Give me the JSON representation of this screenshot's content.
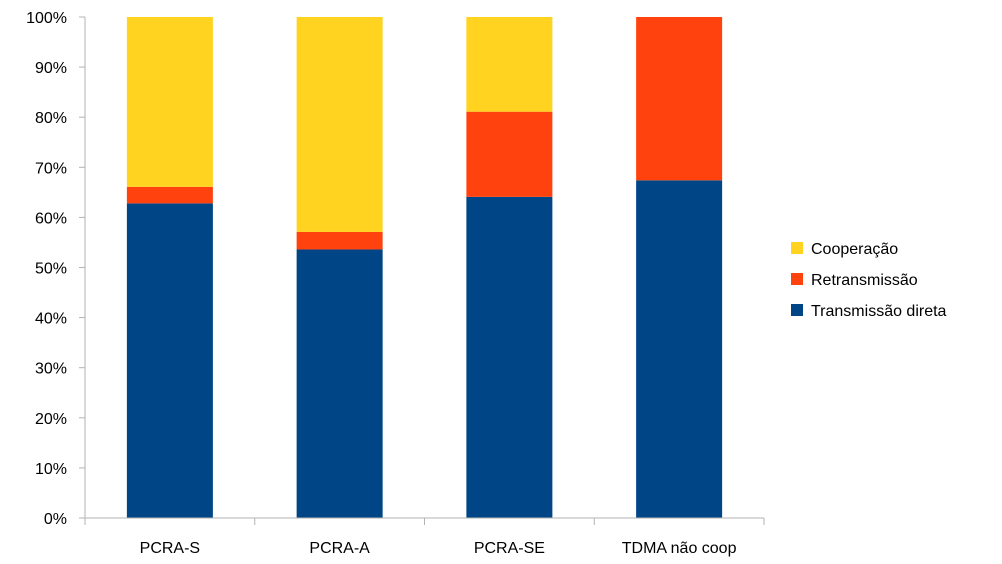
{
  "chart_data": {
    "type": "bar",
    "stacked": true,
    "title": "",
    "xlabel": "",
    "ylabel": "",
    "categories": [
      "PCRA-S",
      "PCRA-A",
      "PCRA-SE",
      "TDMA não coop"
    ],
    "series": [
      {
        "name": "Transmissão direta",
        "color": "#004586",
        "values": [
          62.8,
          53.6,
          64.1,
          67.4
        ]
      },
      {
        "name": "Retransmissão",
        "color": "#ff420e",
        "values": [
          3.3,
          3.5,
          17.0,
          32.6
        ]
      },
      {
        "name": "Cooperação",
        "color": "#ffd320",
        "values": [
          33.9,
          42.9,
          18.9,
          0
        ]
      }
    ],
    "ylim": [
      0,
      100
    ],
    "yticks": [
      "0%",
      "10%",
      "20%",
      "30%",
      "40%",
      "50%",
      "60%",
      "70%",
      "80%",
      "90%",
      "100%"
    ],
    "grid": false,
    "legend_position": "right",
    "legend_order": [
      "Cooperação",
      "Retransmissão",
      "Transmissão direta"
    ]
  }
}
